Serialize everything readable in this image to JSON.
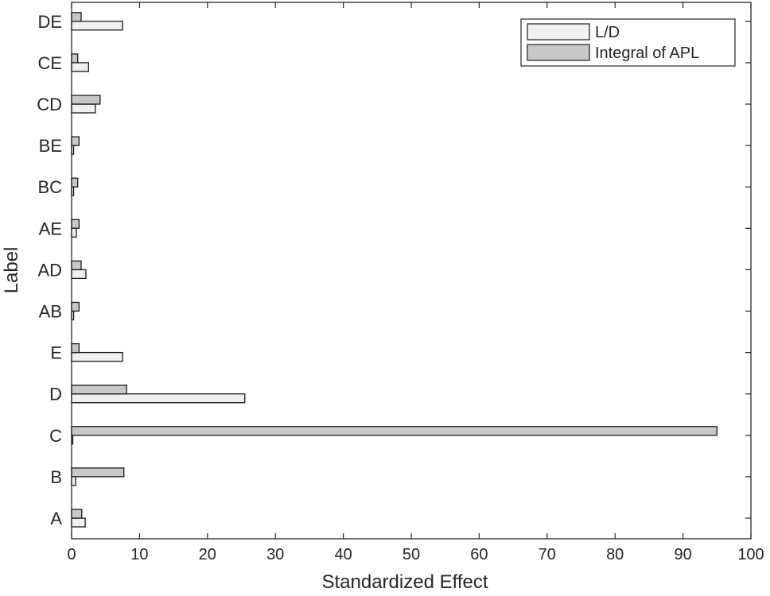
{
  "chart_data": {
    "type": "bar",
    "orientation": "horizontal",
    "categories": [
      "A",
      "B",
      "C",
      "D",
      "E",
      "AB",
      "AD",
      "AE",
      "BC",
      "BE",
      "CD",
      "CE",
      "DE"
    ],
    "series": [
      {
        "name": "L/D",
        "color": "#f0f0f0",
        "values": [
          2.0,
          0.6,
          0.1,
          25.5,
          7.5,
          0.3,
          2.1,
          0.7,
          0.3,
          0.3,
          3.5,
          2.5,
          7.5
        ]
      },
      {
        "name": "Integral of APL",
        "color": "#c8c8c8",
        "values": [
          1.5,
          7.7,
          95.0,
          8.1,
          1.1,
          1.1,
          1.4,
          1.1,
          0.9,
          1.1,
          4.2,
          0.9,
          1.4
        ]
      }
    ],
    "xlabel": "Standardized Effect",
    "ylabel": "Label",
    "xlim": [
      0,
      100
    ],
    "xticks": [
      "0",
      "10",
      "20",
      "30",
      "40",
      "50",
      "60",
      "70",
      "80",
      "90",
      "100"
    ],
    "grid": false,
    "legend_position": "top-right"
  }
}
